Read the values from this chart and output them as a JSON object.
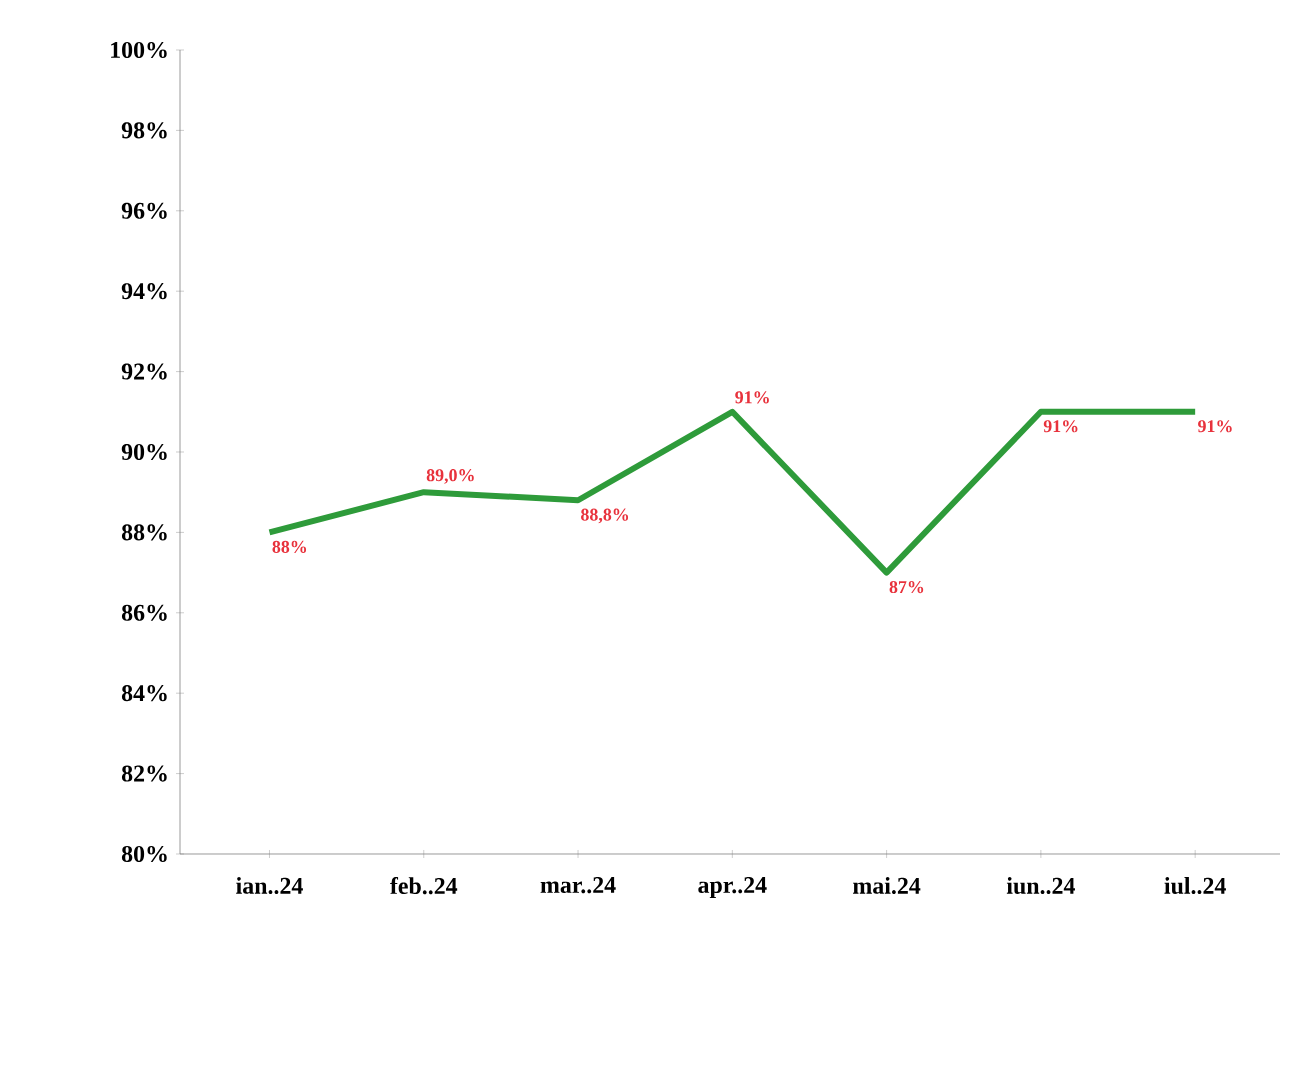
{
  "chart_data": {
    "type": "line",
    "categories": [
      "ian..24",
      "feb..24",
      "mar..24",
      "apr..24",
      "mai.24",
      "iun..24",
      "iul..24"
    ],
    "series": [
      {
        "color": "#2e9b3a",
        "values": [
          88,
          89.0,
          88.8,
          91,
          87,
          91,
          91
        ],
        "value_labels": [
          "88%",
          "89,0%",
          "88,8%",
          "91%",
          "87%",
          "91%",
          "91%"
        ]
      }
    ],
    "ylim": [
      80,
      100
    ],
    "yticks": [
      {
        "value": 80,
        "label": "80%"
      },
      {
        "value": 82,
        "label": "82%"
      },
      {
        "value": 84,
        "label": "84%"
      },
      {
        "value": 86,
        "label": "86%"
      },
      {
        "value": 88,
        "label": "88%"
      },
      {
        "value": 90,
        "label": "90%"
      },
      {
        "value": 92,
        "label": "92%"
      },
      {
        "value": 94,
        "label": "94%"
      },
      {
        "value": 96,
        "label": "96%"
      },
      {
        "value": 98,
        "label": "98%"
      },
      {
        "value": 100,
        "label": "100%"
      }
    ],
    "grid": false,
    "marker": "none",
    "line_style": "solid"
  }
}
